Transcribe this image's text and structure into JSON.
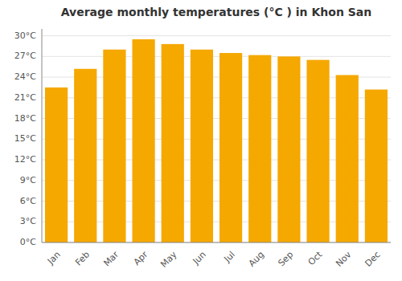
{
  "chart_data": {
    "type": "bar",
    "title": "Average monthly temperatures (°C ) in Khon San",
    "categories": [
      "Jan",
      "Feb",
      "Mar",
      "Apr",
      "May",
      "Jun",
      "Jul",
      "Aug",
      "Sep",
      "Oct",
      "Nov",
      "Dec"
    ],
    "values": [
      22.5,
      25.2,
      28.0,
      29.5,
      28.8,
      28.0,
      27.5,
      27.2,
      27.0,
      26.5,
      24.3,
      22.2
    ],
    "color": "#F5A800",
    "ylim": [
      0,
      31
    ],
    "yticks": [
      {
        "value": 0,
        "label": "0°C"
      },
      {
        "value": 3,
        "label": "3°C"
      },
      {
        "value": 6,
        "label": "6°C"
      },
      {
        "value": 9,
        "label": "9°C"
      },
      {
        "value": 12,
        "label": "12°C"
      },
      {
        "value": 15,
        "label": "15°C"
      },
      {
        "value": 18,
        "label": "18°C"
      },
      {
        "value": 21,
        "label": "21°C"
      },
      {
        "value": 24,
        "label": "24°C"
      },
      {
        "value": 27,
        "label": "27°C"
      },
      {
        "value": 30,
        "label": "30°C"
      }
    ],
    "grid": true
  }
}
